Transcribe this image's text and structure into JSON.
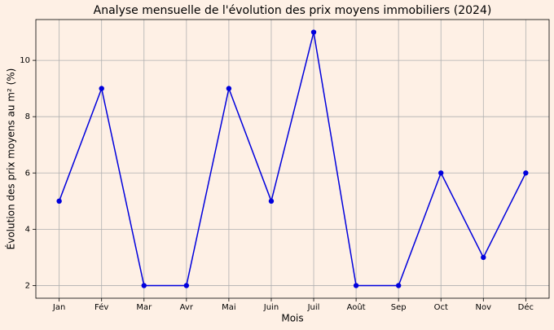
{
  "chart_data": {
    "type": "line",
    "title": "Analyse mensuelle de l'évolution des prix moyens immobiliers (2024)",
    "x_label": "Mois",
    "y_label": "Évolution des prix moyens au m² (%)",
    "categories": [
      "Jan",
      "Fév",
      "Mar",
      "Avr",
      "Mai",
      "Juin",
      "Juil",
      "Août",
      "Sep",
      "Oct",
      "Nov",
      "Déc"
    ],
    "values": [
      5,
      9,
      2,
      2,
      9,
      5,
      11,
      2,
      2,
      6,
      3,
      6
    ],
    "color": "#0000dd",
    "ylim": [
      1.55,
      11.45
    ],
    "yticks": [
      2,
      4,
      6,
      8,
      10
    ],
    "grid": true
  }
}
